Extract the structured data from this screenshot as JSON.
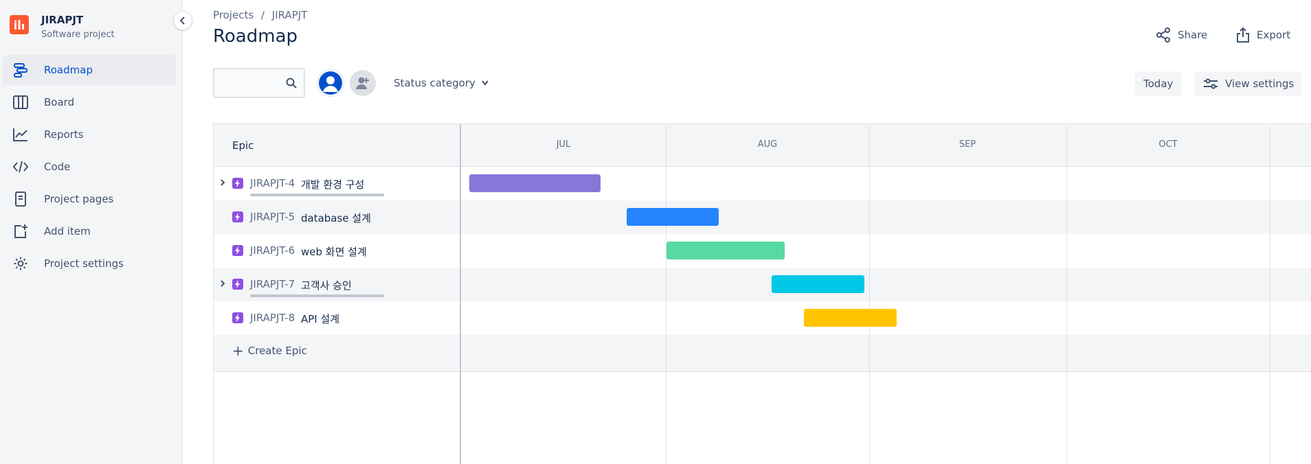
{
  "project": {
    "name": "JIRAPJT",
    "type": "Software project"
  },
  "nav": [
    {
      "label": "Roadmap",
      "icon": "roadmap-icon",
      "active": true
    },
    {
      "label": "Board",
      "icon": "board-icon"
    },
    {
      "label": "Reports",
      "icon": "reports-icon"
    },
    {
      "label": "Code",
      "icon": "code-icon"
    },
    {
      "label": "Project pages",
      "icon": "pages-icon"
    },
    {
      "label": "Add item",
      "icon": "add-item-icon"
    },
    {
      "label": "Project settings",
      "icon": "gear-icon"
    }
  ],
  "breadcrumb": {
    "root": "Projects",
    "separator": "/",
    "current": "JIRAPJT"
  },
  "title": "Roadmap",
  "header_actions": {
    "share": "Share",
    "export": "Export"
  },
  "toolbar": {
    "search_placeholder": "",
    "status_filter": "Status category",
    "today": "Today",
    "view_settings": "View settings"
  },
  "roadmap": {
    "epic_header": "Epic",
    "months": [
      "JUL",
      "AUG",
      "SEP",
      "OCT"
    ],
    "epics": [
      {
        "key": "JIRAPJT-4",
        "summary": "개발 환경 구성",
        "expandable": true,
        "color": "#8777d9"
      },
      {
        "key": "JIRAPJT-5",
        "summary": "database 설계",
        "expandable": false,
        "color": "#2684ff"
      },
      {
        "key": "JIRAPJT-6",
        "summary": "web 화면 설계",
        "expandable": false,
        "color": "#57d9a3"
      },
      {
        "key": "JIRAPJT-7",
        "summary": "고객사 승인",
        "expandable": true,
        "color": "#00c7e6"
      },
      {
        "key": "JIRAPJT-8",
        "summary": "API 설계",
        "expandable": false,
        "color": "#ffc400"
      }
    ],
    "create_epic": "Create Epic"
  },
  "colors": {
    "accent": "#0052cc",
    "epic": "#904ee2",
    "logo": "#ff5630"
  }
}
